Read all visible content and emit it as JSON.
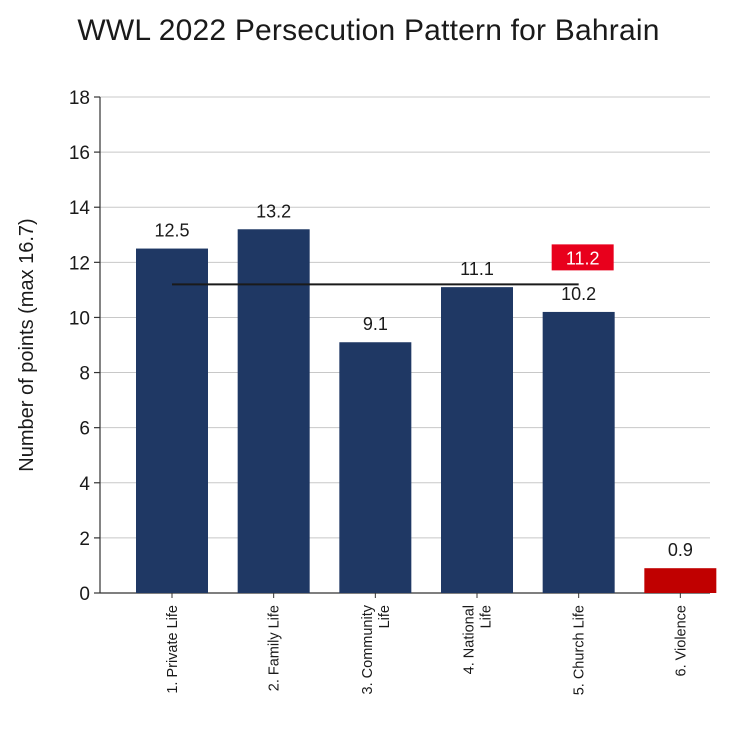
{
  "chart_data": {
    "type": "bar",
    "title": "WWL 2022 Persecution Pattern for Bahrain",
    "ylabel": "Number of points (max 16.7)",
    "xlabel": "",
    "ylim": [
      0,
      18
    ],
    "yticks": [
      0,
      2,
      4,
      6,
      8,
      10,
      12,
      14,
      16,
      18
    ],
    "grid": true,
    "categories": [
      [
        "1. Private Life"
      ],
      [
        "2. Family Life"
      ],
      [
        "3. Community",
        "Life"
      ],
      [
        "4. National",
        "Life"
      ],
      [
        "5. Church Life"
      ],
      [
        "6. Violence"
      ]
    ],
    "values": [
      12.5,
      13.2,
      9.1,
      11.1,
      10.2,
      0.9
    ],
    "value_labels": [
      "12.5",
      "13.2",
      "9.1",
      "11.1",
      "10.2",
      "0.9"
    ],
    "bar_colors": [
      "#1f3864",
      "#1f3864",
      "#1f3864",
      "#1f3864",
      "#1f3864",
      "#c00000"
    ],
    "average": {
      "value": 11.2,
      "label": "11.2",
      "spans_categories": [
        0,
        4
      ],
      "line_color": "#1a1a1a",
      "label_bg": "#e8001c"
    }
  }
}
